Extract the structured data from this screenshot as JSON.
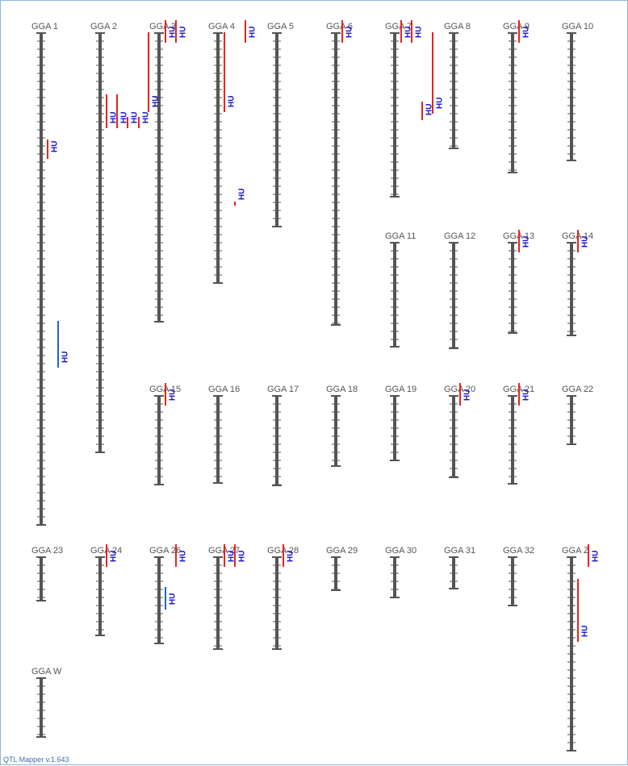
{
  "app": {
    "footer": "QTL Mapper v.1.643"
  },
  "legend_colors": {
    "qtl_red": "#e8231f",
    "qtl_blue": "#2363c8",
    "qtl_text": "#1414c8",
    "chromosome": "#555555"
  },
  "chromosomes": [
    {
      "name": "GGA 1",
      "qtls": [
        {
          "trait": "HU",
          "color": "red"
        },
        {
          "trait": "HU",
          "color": "blue"
        }
      ]
    },
    {
      "name": "GGA 2",
      "qtls": [
        {
          "trait": "HU",
          "color": "red"
        },
        {
          "trait": "HU",
          "color": "red"
        },
        {
          "trait": "HU",
          "color": "red"
        },
        {
          "trait": "HU",
          "color": "red"
        }
      ]
    },
    {
      "name": "GGA 3",
      "qtls": [
        {
          "trait": "HU",
          "color": "red"
        },
        {
          "trait": "HU",
          "color": "red"
        },
        {
          "trait": "HU",
          "color": "red"
        }
      ]
    },
    {
      "name": "GGA 4",
      "qtls": [
        {
          "trait": "HU",
          "color": "red"
        },
        {
          "trait": "HU",
          "color": "red"
        },
        {
          "trait": "HU",
          "color": "red"
        }
      ]
    },
    {
      "name": "GGA 5",
      "qtls": []
    },
    {
      "name": "GGA 6",
      "qtls": [
        {
          "trait": "HU",
          "color": "red"
        }
      ]
    },
    {
      "name": "GGA 7",
      "qtls": [
        {
          "trait": "HU",
          "color": "red"
        },
        {
          "trait": "HU",
          "color": "red"
        },
        {
          "trait": "HU",
          "color": "red"
        },
        {
          "trait": "HU",
          "color": "red"
        }
      ]
    },
    {
      "name": "GGA 8",
      "qtls": []
    },
    {
      "name": "GGA 9",
      "qtls": [
        {
          "trait": "HU",
          "color": "red"
        }
      ]
    },
    {
      "name": "GGA 10",
      "qtls": []
    },
    {
      "name": "GGA 11",
      "qtls": []
    },
    {
      "name": "GGA 12",
      "qtls": []
    },
    {
      "name": "GGA 13",
      "qtls": [
        {
          "trait": "HU",
          "color": "red"
        }
      ]
    },
    {
      "name": "GGA 14",
      "qtls": [
        {
          "trait": "HU",
          "color": "red"
        }
      ]
    },
    {
      "name": "GGA 15",
      "qtls": [
        {
          "trait": "HU",
          "color": "red"
        }
      ]
    },
    {
      "name": "GGA 16",
      "qtls": []
    },
    {
      "name": "GGA 17",
      "qtls": []
    },
    {
      "name": "GGA 18",
      "qtls": []
    },
    {
      "name": "GGA 19",
      "qtls": []
    },
    {
      "name": "GGA 20",
      "qtls": [
        {
          "trait": "HU",
          "color": "red"
        }
      ]
    },
    {
      "name": "GGA 21",
      "qtls": [
        {
          "trait": "HU",
          "color": "red"
        }
      ]
    },
    {
      "name": "GGA 22",
      "qtls": []
    },
    {
      "name": "GGA 23",
      "qtls": []
    },
    {
      "name": "GGA 24",
      "qtls": [
        {
          "trait": "HU",
          "color": "red"
        }
      ]
    },
    {
      "name": "GGA 26",
      "qtls": [
        {
          "trait": "HU",
          "color": "red"
        },
        {
          "trait": "HU",
          "color": "blue"
        }
      ]
    },
    {
      "name": "GGA 27",
      "qtls": [
        {
          "trait": "HU",
          "color": "red"
        },
        {
          "trait": "HU",
          "color": "red"
        }
      ]
    },
    {
      "name": "GGA 28",
      "qtls": [
        {
          "trait": "HU",
          "color": "red"
        }
      ]
    },
    {
      "name": "GGA 29",
      "qtls": []
    },
    {
      "name": "GGA 30",
      "qtls": []
    },
    {
      "name": "GGA 31",
      "qtls": []
    },
    {
      "name": "GGA 32",
      "qtls": []
    },
    {
      "name": "GGA Z",
      "qtls": [
        {
          "trait": "HU",
          "color": "red"
        },
        {
          "trait": "HU",
          "color": "red"
        }
      ]
    },
    {
      "name": "GGA W",
      "qtls": []
    }
  ]
}
